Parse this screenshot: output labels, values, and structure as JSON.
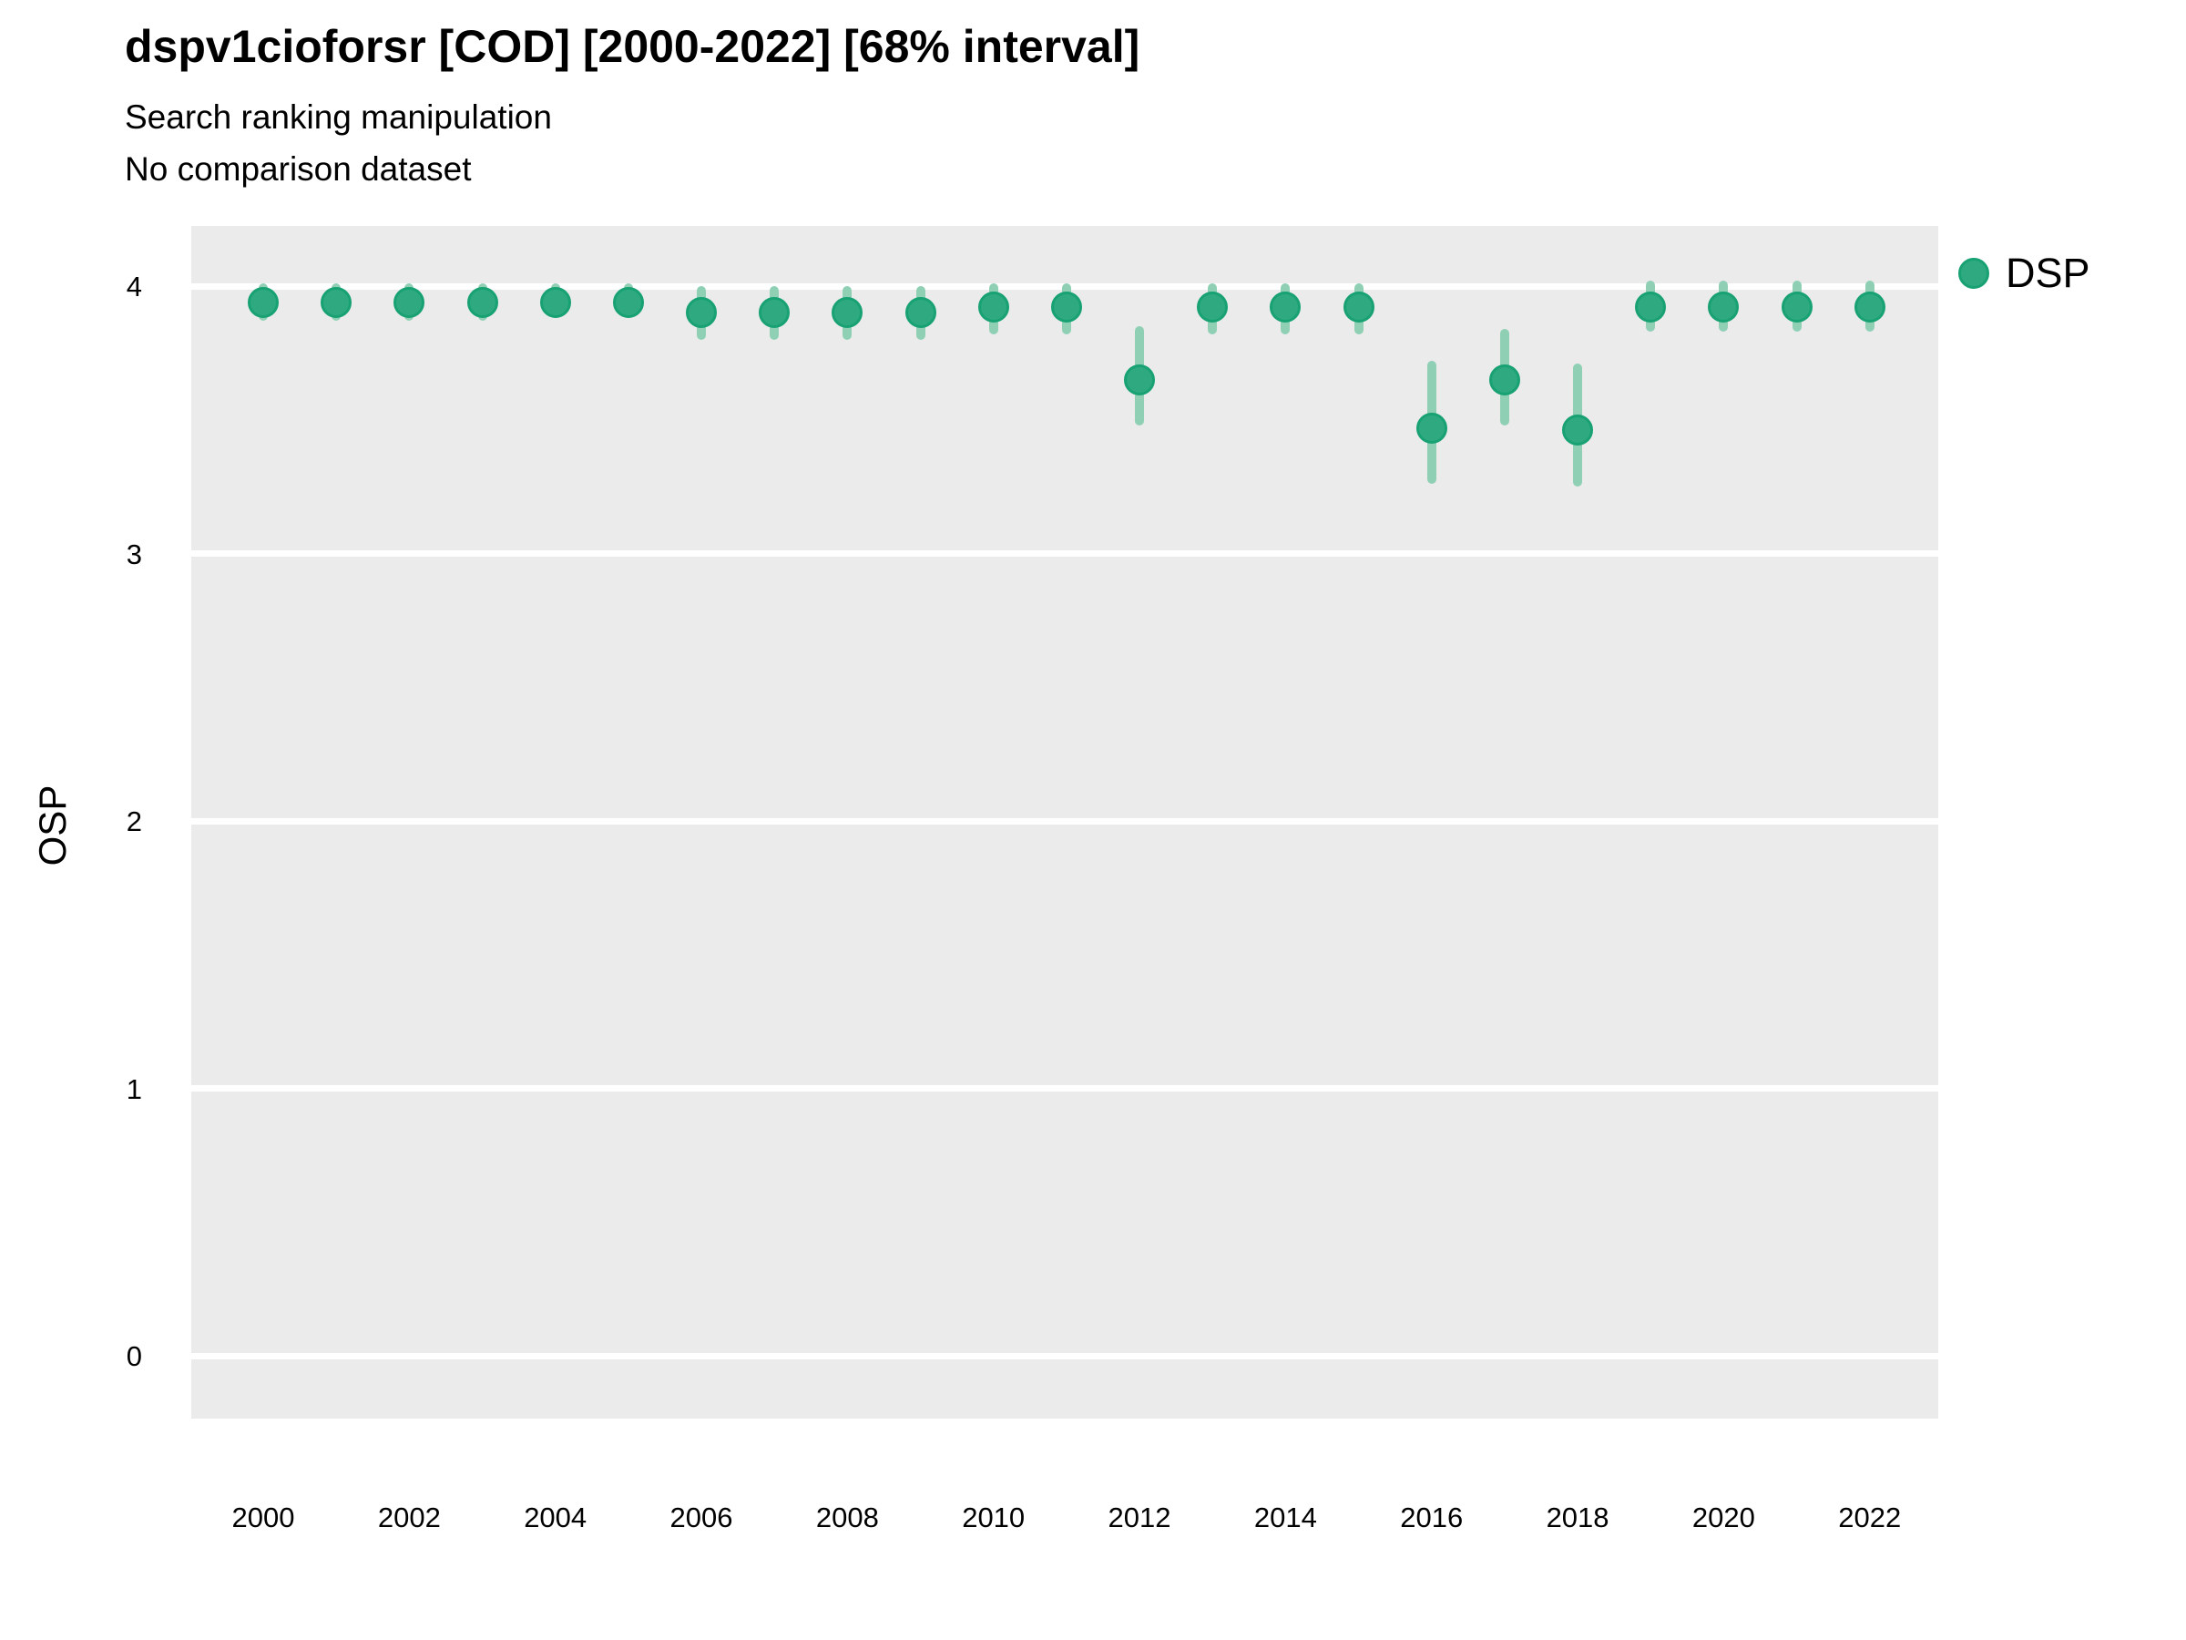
{
  "header": {
    "title": "dspv1cioforsr [COD] [2000-2022] [68% interval]",
    "subtitle1": "Search ranking manipulation",
    "subtitle2": "No comparison dataset"
  },
  "legend": {
    "label": "DSP"
  },
  "axes": {
    "ylabel": "OSP",
    "y_ticks": [
      "0",
      "1",
      "2",
      "3",
      "4"
    ],
    "x_ticks": [
      "2000",
      "2002",
      "2004",
      "2006",
      "2008",
      "2010",
      "2012",
      "2014",
      "2016",
      "2018",
      "2020",
      "2022"
    ]
  },
  "colors": {
    "point": "#2faa80",
    "point_border": "#18a173",
    "interval_bar": "#8fd0b5",
    "panel_background": "#ebebeb",
    "gridline": "#ffffff",
    "text": "#000000"
  },
  "chart_data": {
    "type": "scatter",
    "title": "dspv1cioforsr [COD] [2000-2022] [68% interval]",
    "subtitle": [
      "Search ranking manipulation",
      "No comparison dataset"
    ],
    "xlabel": "",
    "ylabel": "OSP",
    "interval": "68%",
    "grid": "horizontal-major-only",
    "legend_position": "right-top",
    "xlim": [
      1999.0,
      2023.0
    ],
    "ylim": [
      -0.23,
      4.22
    ],
    "x_tick_values": [
      2000,
      2002,
      2004,
      2006,
      2008,
      2010,
      2012,
      2014,
      2016,
      2018,
      2020,
      2022
    ],
    "y_tick_values": [
      0,
      1,
      2,
      3,
      4
    ],
    "series": [
      {
        "name": "DSP",
        "color": "#2faa80",
        "points": [
          {
            "year": 2000,
            "y": 3.94,
            "lo": 3.87,
            "hi": 4.01
          },
          {
            "year": 2001,
            "y": 3.94,
            "lo": 3.87,
            "hi": 4.01
          },
          {
            "year": 2002,
            "y": 3.94,
            "lo": 3.87,
            "hi": 4.01
          },
          {
            "year": 2003,
            "y": 3.94,
            "lo": 3.87,
            "hi": 4.01
          },
          {
            "year": 2004,
            "y": 3.94,
            "lo": 3.88,
            "hi": 4.01
          },
          {
            "year": 2005,
            "y": 3.94,
            "lo": 3.88,
            "hi": 4.01
          },
          {
            "year": 2006,
            "y": 3.9,
            "lo": 3.8,
            "hi": 4.0
          },
          {
            "year": 2007,
            "y": 3.9,
            "lo": 3.8,
            "hi": 4.0
          },
          {
            "year": 2008,
            "y": 3.9,
            "lo": 3.8,
            "hi": 4.0
          },
          {
            "year": 2009,
            "y": 3.9,
            "lo": 3.8,
            "hi": 4.0
          },
          {
            "year": 2010,
            "y": 3.92,
            "lo": 3.82,
            "hi": 4.01
          },
          {
            "year": 2011,
            "y": 3.92,
            "lo": 3.82,
            "hi": 4.01
          },
          {
            "year": 2012,
            "y": 3.65,
            "lo": 3.48,
            "hi": 3.85
          },
          {
            "year": 2013,
            "y": 3.92,
            "lo": 3.82,
            "hi": 4.01
          },
          {
            "year": 2014,
            "y": 3.92,
            "lo": 3.82,
            "hi": 4.01
          },
          {
            "year": 2015,
            "y": 3.92,
            "lo": 3.82,
            "hi": 4.01
          },
          {
            "year": 2016,
            "y": 3.47,
            "lo": 3.26,
            "hi": 3.72
          },
          {
            "year": 2017,
            "y": 3.65,
            "lo": 3.48,
            "hi": 3.84
          },
          {
            "year": 2018,
            "y": 3.46,
            "lo": 3.25,
            "hi": 3.71
          },
          {
            "year": 2019,
            "y": 3.92,
            "lo": 3.83,
            "hi": 4.02
          },
          {
            "year": 2020,
            "y": 3.92,
            "lo": 3.83,
            "hi": 4.02
          },
          {
            "year": 2021,
            "y": 3.92,
            "lo": 3.83,
            "hi": 4.02
          },
          {
            "year": 2022,
            "y": 3.92,
            "lo": 3.83,
            "hi": 4.02
          }
        ]
      }
    ]
  }
}
